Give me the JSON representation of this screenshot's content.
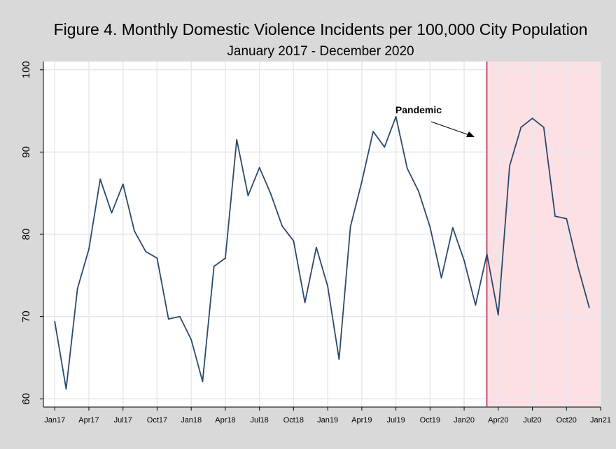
{
  "chart_data": {
    "type": "line",
    "title": "Figure 4. Monthly Domestic Violence Incidents per 100,000 City Population",
    "subtitle": "January 2017 - December 2020",
    "xlabel": "",
    "ylabel": "",
    "x_tick_labels": [
      "Jan17",
      "Apr17",
      "Jul17",
      "Oct17",
      "Jan18",
      "Apr18",
      "Jul18",
      "Oct18",
      "Jan19",
      "Apr19",
      "Jul19",
      "Oct19",
      "Jan20",
      "Apr20",
      "Jul20",
      "Oct20",
      "Jan21"
    ],
    "y_ticks": [
      60,
      70,
      80,
      90,
      100
    ],
    "ylim": [
      59,
      101
    ],
    "xlim": [
      -1,
      48
    ],
    "grid": true,
    "x_index_note_free": true,
    "series": [
      {
        "values": [
          69.4,
          61.2,
          73.4,
          78.2,
          86.7,
          82.6,
          86.1,
          80.4,
          77.9,
          77.1,
          69.7,
          70.0,
          67.2,
          62.1,
          76.1,
          77.1,
          91.5,
          84.7,
          88.1,
          84.9,
          81.0,
          79.2,
          71.7,
          78.4,
          73.7,
          64.8,
          80.9,
          86.4,
          92.5,
          90.6,
          94.3,
          88.0,
          85.2,
          80.9,
          74.7,
          80.8,
          76.8,
          71.4,
          77.6,
          70.2,
          88.3,
          93.0,
          94.1,
          93.0,
          82.2,
          81.9,
          76.1,
          71.1
        ]
      }
    ],
    "colors": {
      "line": "#2a4a6b",
      "pandemic_line": "#b0173a",
      "pandemic_shade": "#fde0e4"
    },
    "pandemic_start_index": 38,
    "annotation": {
      "text": "Pandemic"
    }
  }
}
